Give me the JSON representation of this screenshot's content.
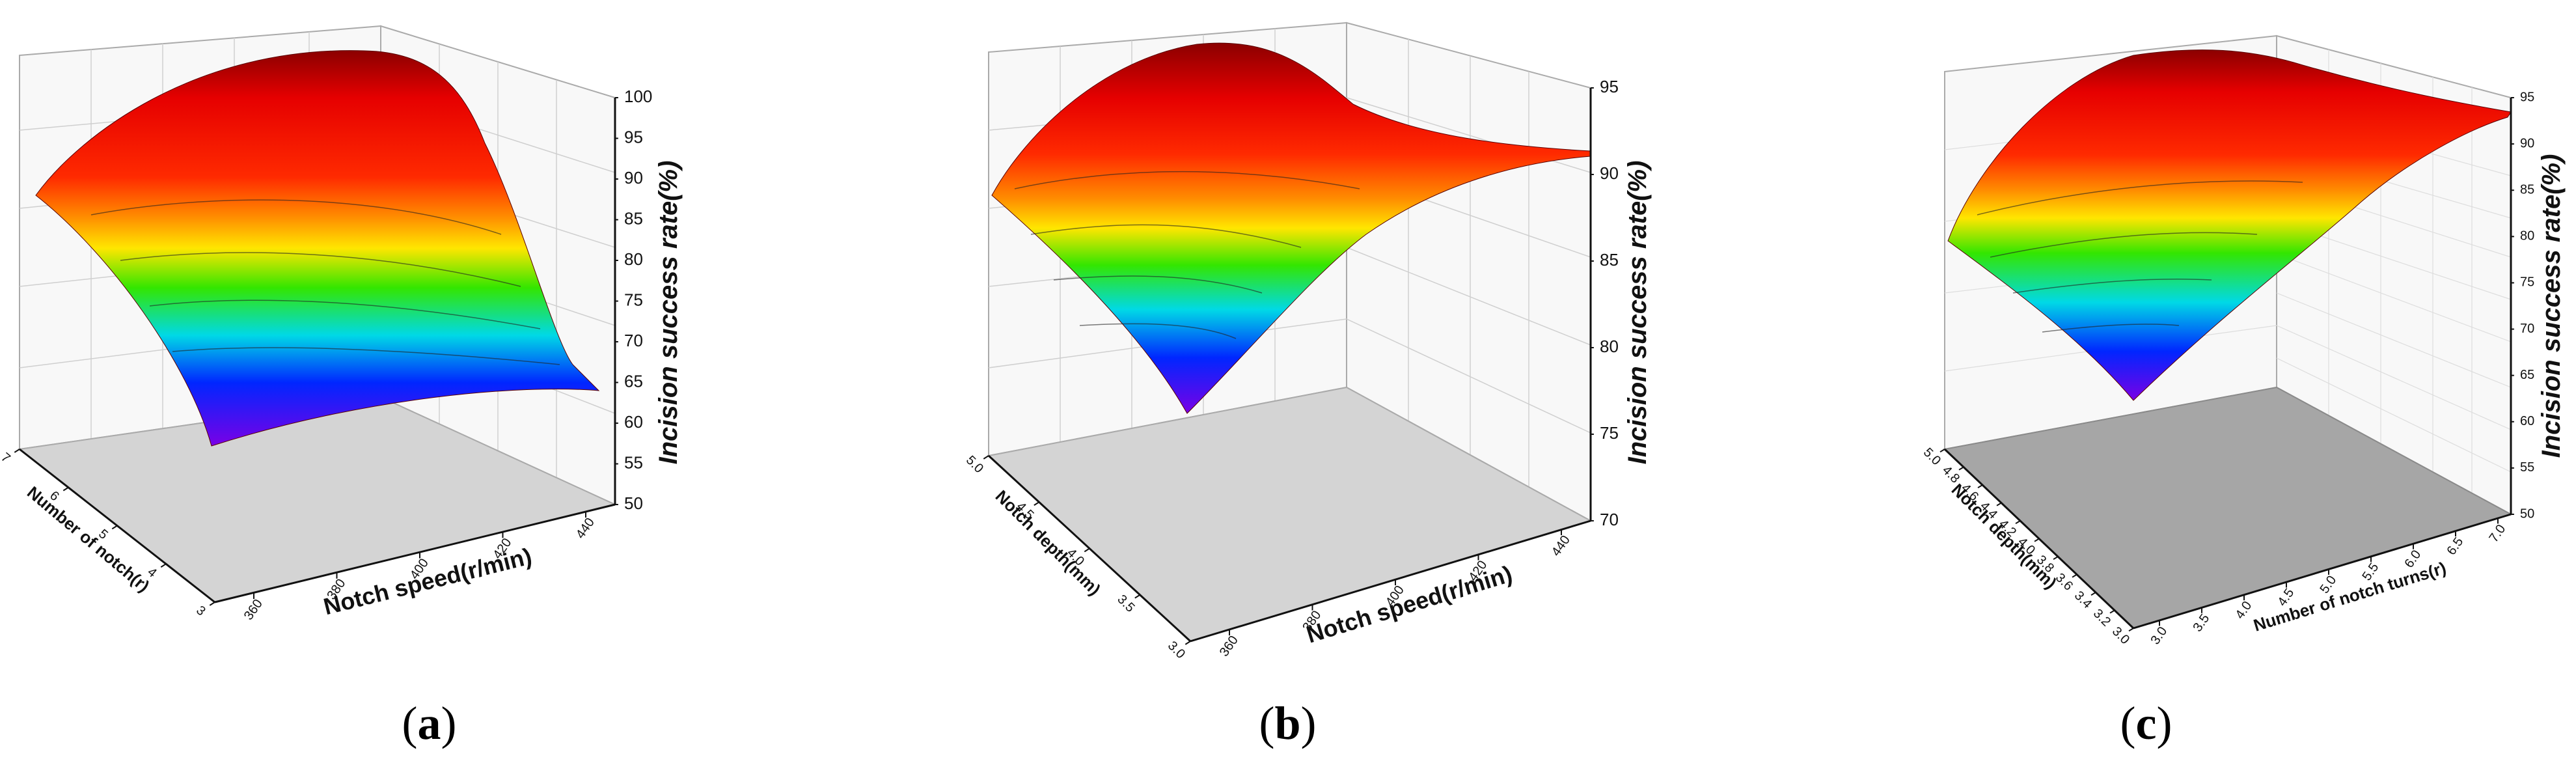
{
  "chart_data": [
    {
      "type": "surface",
      "panel": "(a)",
      "caption_letter": "a",
      "xlabel": "Number of notch(r)",
      "ylabel": "Notch speed(r/min)",
      "zlabel": "Incision success rate(%)",
      "x_ticks": [
        "7",
        "6",
        "5",
        "4",
        "3"
      ],
      "y_ticks": [
        "360",
        "380",
        "400",
        "420",
        "440"
      ],
      "z_ticks": [
        "50",
        "55",
        "60",
        "65",
        "70",
        "75",
        "80",
        "85",
        "90",
        "95",
        "100"
      ],
      "zlim": [
        50,
        100
      ],
      "grid": true,
      "colormap": "rainbow"
    },
    {
      "type": "surface",
      "panel": "(b)",
      "caption_letter": "b",
      "xlabel": "Notch depth(mm)",
      "ylabel": "Notch speed(r/min)",
      "zlabel": "Incision success rate(%)",
      "x_ticks": [
        "5.0",
        "4.5",
        "4.0",
        "3.5",
        "3.0"
      ],
      "y_ticks": [
        "360",
        "380",
        "400",
        "420",
        "440"
      ],
      "z_ticks": [
        "70",
        "75",
        "80",
        "85",
        "90",
        "95"
      ],
      "zlim": [
        70,
        95
      ],
      "grid": true,
      "colormap": "rainbow"
    },
    {
      "type": "surface",
      "panel": "(c)",
      "caption_letter": "c",
      "xlabel": "Notch depth(mm)",
      "ylabel": "Number of notch turns(r)",
      "zlabel": "Incision success rate(%)",
      "x_ticks": [
        "5.0",
        "4.8",
        "4.6",
        "4.4",
        "4.2",
        "4.0",
        "3.8",
        "3.6",
        "3.4",
        "3.2",
        "3.0"
      ],
      "y_ticks": [
        "3.0",
        "3.5",
        "4.0",
        "4.5",
        "5.0",
        "5.5",
        "6.0",
        "6.5",
        "7.0"
      ],
      "z_ticks": [
        "50",
        "55",
        "60",
        "65",
        "70",
        "75",
        "80",
        "85",
        "90",
        "95"
      ],
      "zlim": [
        50,
        97
      ],
      "grid": true,
      "colormap": "rainbow"
    }
  ]
}
